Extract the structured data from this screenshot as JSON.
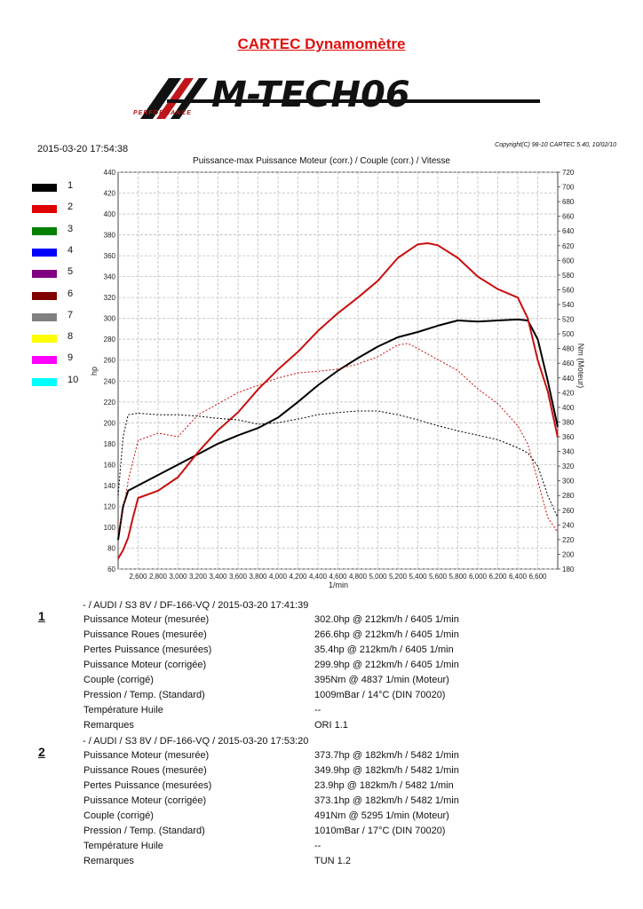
{
  "report": {
    "title": "CARTEC Dynamomètre",
    "logo_text": "M-TECH06",
    "logo_tagline": "PERFORMANCE",
    "timestamp": "2015-03-20   17:54:38",
    "copyright": "Copyright(C) 98-10 CARTEC 5.40, 10/02/10"
  },
  "legend": [
    {
      "label": "1",
      "color": "#000000"
    },
    {
      "label": "2",
      "color": "#e00000"
    },
    {
      "label": "3",
      "color": "#008000"
    },
    {
      "label": "4",
      "color": "#0000ff"
    },
    {
      "label": "5",
      "color": "#800080"
    },
    {
      "label": "6",
      "color": "#800000"
    },
    {
      "label": "7",
      "color": "#808080"
    },
    {
      "label": "8",
      "color": "#ffff00"
    },
    {
      "label": "9",
      "color": "#ff00ff"
    },
    {
      "label": "10",
      "color": "#00ffff"
    }
  ],
  "chart_data": {
    "type": "line",
    "title": "Puissance-max Puissance Moteur (corr.) / Couple (corr.) / Vitesse",
    "xlabel": "1/min",
    "ylabel_left": "hp",
    "ylabel_right": "Nm (Moteur)",
    "xlim": [
      2400,
      6800
    ],
    "ylim_left": [
      60,
      440
    ],
    "ylim_right": [
      180,
      720
    ],
    "x_ticks": [
      "2,600",
      "2,800",
      "3,000",
      "3,200",
      "3,400",
      "3,600",
      "3,800",
      "4,000",
      "4,200",
      "4,400",
      "4,600",
      "4,800",
      "5,000",
      "5,200",
      "5,400",
      "5,600",
      "5,800",
      "6,000",
      "6,200",
      "6,400",
      "6,600"
    ],
    "y_ticks_left": [
      "60",
      "80",
      "100",
      "120",
      "140",
      "160",
      "180",
      "200",
      "220",
      "240",
      "260",
      "280",
      "300",
      "320",
      "340",
      "360",
      "380",
      "400",
      "420",
      "440"
    ],
    "y_ticks_right": [
      "180",
      "200",
      "220",
      "240",
      "260",
      "280",
      "300",
      "320",
      "340",
      "360",
      "380",
      "400",
      "420",
      "440",
      "460",
      "480",
      "500",
      "520",
      "540",
      "560",
      "580",
      "600",
      "620",
      "640",
      "660",
      "680",
      "700",
      "720"
    ],
    "series": [
      {
        "name": "1",
        "color": "#000000",
        "style": "solid",
        "axis": "left",
        "x": [
          2400,
          2450,
          2500,
          2600,
          2800,
          3000,
          3200,
          3400,
          3600,
          3800,
          4000,
          4200,
          4400,
          4600,
          4800,
          5000,
          5200,
          5400,
          5600,
          5800,
          6000,
          6200,
          6400,
          6500,
          6600,
          6700,
          6800
        ],
        "y": [
          88,
          120,
          135,
          140,
          150,
          160,
          170,
          180,
          188,
          195,
          205,
          220,
          236,
          250,
          262,
          273,
          282,
          287,
          293,
          298,
          297,
          298,
          299,
          298,
          280,
          240,
          196
        ]
      },
      {
        "name": "2",
        "color": "#c81010",
        "style": "solid",
        "axis": "left",
        "x": [
          2400,
          2450,
          2500,
          2550,
          2600,
          2800,
          3000,
          3200,
          3400,
          3600,
          3800,
          4000,
          4200,
          4400,
          4600,
          4800,
          5000,
          5200,
          5400,
          5500,
          5600,
          5800,
          6000,
          6200,
          6400,
          6500,
          6600,
          6700,
          6800
        ],
        "y": [
          70,
          78,
          90,
          110,
          128,
          135,
          148,
          172,
          193,
          210,
          232,
          251,
          268,
          288,
          305,
          320,
          336,
          358,
          371,
          372,
          370,
          358,
          340,
          328,
          320,
          300,
          260,
          230,
          186
        ]
      },
      {
        "name": "1",
        "color": "#000000",
        "style": "dashed",
        "axis": "right",
        "x": [
          2400,
          2450,
          2500,
          2600,
          2800,
          3000,
          3200,
          3400,
          3600,
          3800,
          4000,
          4200,
          4400,
          4600,
          4800,
          5000,
          5200,
          5400,
          5600,
          5800,
          6000,
          6200,
          6400,
          6500,
          6600,
          6700,
          6800
        ],
        "y": [
          280,
          360,
          390,
          392,
          390,
          390,
          388,
          385,
          383,
          377,
          379,
          384,
          390,
          393,
          395,
          395,
          390,
          383,
          375,
          368,
          362,
          356,
          345,
          338,
          320,
          280,
          250
        ]
      },
      {
        "name": "2",
        "color": "#c81010",
        "style": "dashed",
        "axis": "right",
        "x": [
          2400,
          2450,
          2500,
          2600,
          2800,
          3000,
          3200,
          3400,
          3600,
          3800,
          4000,
          4200,
          4400,
          4600,
          4800,
          5000,
          5200,
          5300,
          5400,
          5600,
          5800,
          6000,
          6200,
          6400,
          6500,
          6600,
          6700,
          6800
        ],
        "y": [
          230,
          260,
          300,
          355,
          365,
          360,
          390,
          405,
          420,
          430,
          440,
          447,
          449,
          452,
          459,
          469,
          485,
          487,
          480,
          465,
          450,
          425,
          405,
          375,
          350,
          300,
          250,
          230
        ]
      }
    ]
  },
  "runs": [
    {
      "number": "1",
      "header": "- / AUDI / S3 8V / DF-166-VQ / 2015-03-20 17:41:39",
      "rows": [
        {
          "label": "Puissance Moteur (mesurée)",
          "value": "302.0hp @ 212km/h / 6405 1/min"
        },
        {
          "label": "Puissance Roues (mesurée)",
          "value": "266.6hp @ 212km/h / 6405 1/min"
        },
        {
          "label": "Pertes Puissance (mesurées)",
          "value": "35.4hp @ 212km/h / 6405 1/min"
        },
        {
          "label": "Puissance Moteur (corrigée)",
          "value": "299.9hp @ 212km/h / 6405 1/min"
        },
        {
          "label": "Couple (corrigé)",
          "value": "395Nm @ 4837 1/min (Moteur)"
        },
        {
          "label": "Pression / Temp. (Standard)",
          "value": "1009mBar / 14°C    (DIN 70020)"
        },
        {
          "label": "Température Huile",
          "value": "--"
        },
        {
          "label": "Remarques",
          "value": "ORI 1.1"
        }
      ]
    },
    {
      "number": "2",
      "header": "- / AUDI / S3 8V / DF-166-VQ / 2015-03-20 17:53:20",
      "rows": [
        {
          "label": "Puissance Moteur (mesurée)",
          "value": "373.7hp @ 182km/h / 5482 1/min"
        },
        {
          "label": "Puissance Roues (mesurée)",
          "value": "349.9hp @ 182km/h / 5482 1/min"
        },
        {
          "label": "Pertes Puissance (mesurées)",
          "value": "23.9hp @ 182km/h / 5482 1/min"
        },
        {
          "label": "Puissance Moteur (corrigée)",
          "value": "373.1hp @ 182km/h / 5482 1/min"
        },
        {
          "label": "Couple (corrigé)",
          "value": "491Nm @ 5295 1/min (Moteur)"
        },
        {
          "label": "Pression / Temp. (Standard)",
          "value": "1010mBar / 17°C    (DIN 70020)"
        },
        {
          "label": "Température Huile",
          "value": "--"
        },
        {
          "label": "Remarques",
          "value": "TUN 1.2"
        }
      ]
    }
  ]
}
